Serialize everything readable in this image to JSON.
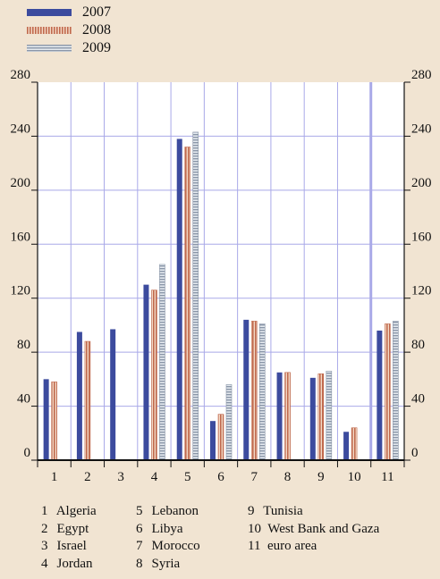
{
  "chart_data": {
    "type": "bar",
    "categories": [
      "1",
      "2",
      "3",
      "4",
      "5",
      "6",
      "7",
      "8",
      "9",
      "10",
      "11"
    ],
    "series": [
      {
        "name": "2007",
        "values": [
          60,
          95,
          97,
          130,
          238,
          29,
          104,
          65,
          61,
          21,
          96
        ]
      },
      {
        "name": "2008",
        "values": [
          58,
          88,
          0,
          126,
          232,
          34,
          103,
          65,
          64,
          24,
          101
        ]
      },
      {
        "name": "2009",
        "values": [
          null,
          null,
          null,
          145,
          243,
          56,
          101,
          null,
          66,
          null,
          103
        ]
      }
    ],
    "ylim": [
      0,
      280
    ],
    "yticks": [
      "0",
      "40",
      "80",
      "120",
      "160",
      "200",
      "240",
      "280"
    ],
    "grid": true,
    "legend_position": "top-left",
    "colors": {
      "background": "#f1e4d2",
      "plot_background": "#ffffff",
      "grid": "#a9a9e8",
      "series_2007": "#3c4b9e",
      "series_2008": "#c06a4e",
      "series_2009": "#8a96a8",
      "highlight_line": "#a9a9e8"
    },
    "notes": [
      {
        "num": "1",
        "label": "Algeria"
      },
      {
        "num": "5",
        "label": "Lebanon"
      },
      {
        "num": "9",
        "label": "Tunisia"
      },
      {
        "num": "2",
        "label": "Egypt"
      },
      {
        "num": "6",
        "label": "Libya"
      },
      {
        "num": "10",
        "label": "West Bank and Gaza"
      },
      {
        "num": "3",
        "label": "Israel"
      },
      {
        "num": "7",
        "label": "Morocco"
      },
      {
        "num": "11",
        "label": "euro area"
      },
      {
        "num": "4",
        "label": "Jordan"
      },
      {
        "num": "8",
        "label": "Syria"
      }
    ]
  }
}
